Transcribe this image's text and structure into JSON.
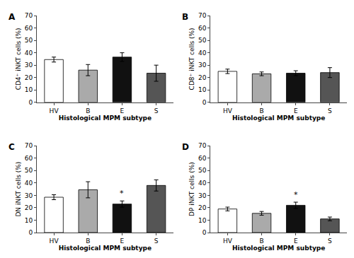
{
  "chart_data": [
    {
      "type": "bar",
      "title": "A",
      "ylabel": "CD4⁺ iNKT cells (%)",
      "xlabel": "Histological MPM subtype",
      "categories": [
        "HV",
        "B",
        "E",
        "S"
      ],
      "values": [
        34.5,
        26,
        36.5,
        23.5
      ],
      "errors": [
        2.0,
        4.5,
        3.5,
        6.5
      ],
      "colors": [
        "#ffffff",
        "#aaaaaa",
        "#111111",
        "#555555"
      ],
      "ylim": [
        0,
        70
      ],
      "yticks": [
        0,
        10,
        20,
        30,
        40,
        50,
        60,
        70
      ],
      "grid": false,
      "annotations": []
    },
    {
      "type": "bar",
      "title": "B",
      "ylabel": "CD8⁺ iNKT cells (%)",
      "xlabel": "Histological MPM subtype",
      "categories": [
        "HV",
        "B",
        "E",
        "S"
      ],
      "values": [
        25,
        23,
        23.5,
        24
      ],
      "errors": [
        1.8,
        1.5,
        2.0,
        4.0
      ],
      "colors": [
        "#ffffff",
        "#aaaaaa",
        "#111111",
        "#555555"
      ],
      "ylim": [
        0,
        70
      ],
      "yticks": [
        0,
        10,
        20,
        30,
        40,
        50,
        60,
        70
      ],
      "grid": false,
      "annotations": []
    },
    {
      "type": "bar",
      "title": "C",
      "ylabel": "DN iNKT cells (%)",
      "xlabel": "Histological MPM subtype",
      "categories": [
        "HV",
        "B",
        "E",
        "S"
      ],
      "values": [
        28.5,
        34.5,
        23,
        38
      ],
      "errors": [
        2.0,
        6.5,
        2.5,
        4.5
      ],
      "colors": [
        "#ffffff",
        "#aaaaaa",
        "#111111",
        "#555555"
      ],
      "ylim": [
        0,
        70
      ],
      "yticks": [
        0,
        10,
        20,
        30,
        40,
        50,
        60,
        70
      ],
      "grid": false,
      "annotations": [
        {
          "x": "E",
          "text": "*"
        }
      ]
    },
    {
      "type": "bar",
      "title": "D",
      "ylabel": "DP iNKT cells (%)",
      "xlabel": "Histological MPM subtype",
      "categories": [
        "HV",
        "B",
        "E",
        "S"
      ],
      "values": [
        19,
        15.5,
        22,
        11
      ],
      "errors": [
        1.5,
        1.5,
        2.5,
        1.5
      ],
      "colors": [
        "#ffffff",
        "#aaaaaa",
        "#111111",
        "#555555"
      ],
      "ylim": [
        0,
        70
      ],
      "yticks": [
        0,
        10,
        20,
        30,
        40,
        50,
        60,
        70
      ],
      "grid": false,
      "annotations": [
        {
          "x": "E",
          "text": "*"
        }
      ]
    }
  ]
}
